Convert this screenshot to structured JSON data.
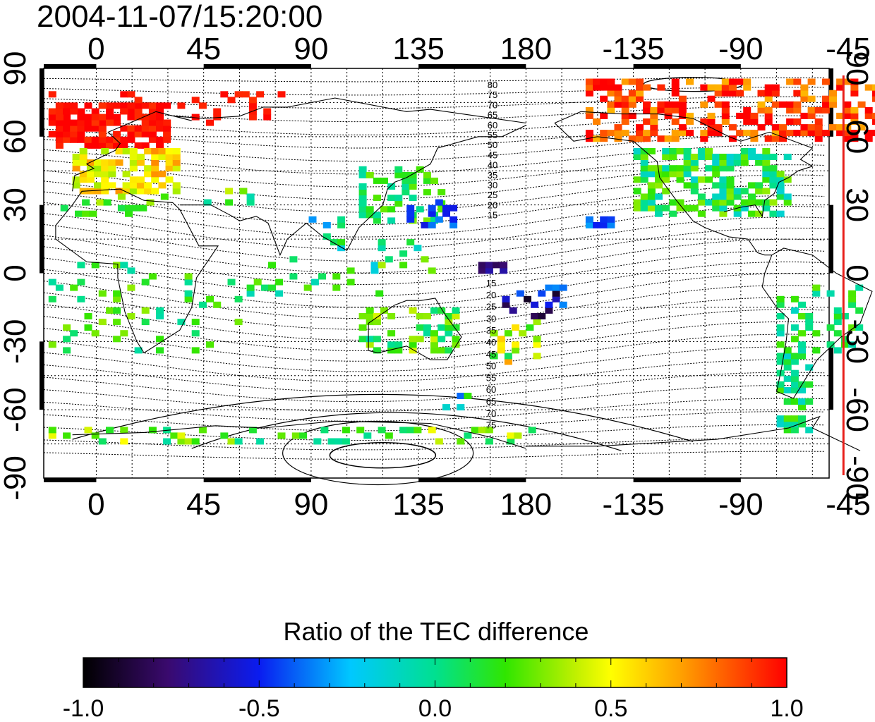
{
  "title": "2004-11-07/15:20:00",
  "map": {
    "lon_labels": [
      "0",
      "45",
      "90",
      "135",
      "180",
      "-135",
      "-90",
      "-45"
    ],
    "lat_labels_left": [
      "90",
      "60",
      "30",
      "0",
      "-30",
      "-60",
      "-90"
    ],
    "lat_labels_right": [
      "90",
      "60",
      "30",
      "0",
      "-30",
      "-60",
      "-90"
    ],
    "lon_range": [
      -22,
      307
    ],
    "lat_range": [
      -90,
      90
    ],
    "terminator_lon": -47,
    "terminator_color": "#e8201c",
    "north_contour_labels": [
      "80",
      "75",
      "70",
      "65",
      "60",
      "55",
      "50",
      "45",
      "40",
      "35",
      "30",
      "25",
      "20",
      "15"
    ],
    "south_contour_labels": [
      "15",
      "20",
      "25",
      "30",
      "35",
      "40",
      "45",
      "50",
      "55",
      "60",
      "65",
      "70",
      "75"
    ]
  },
  "colorbar": {
    "title": "Ratio of the TEC difference",
    "tick_labels": [
      "-1.0",
      "-0.5",
      "0.0",
      "0.5",
      "1.0"
    ],
    "range": [
      -1.0,
      1.0
    ],
    "colormap": "black-purple-blue-cyan-green-yellow-orange-red"
  }
}
